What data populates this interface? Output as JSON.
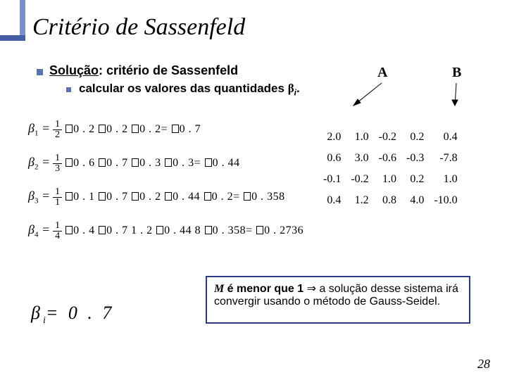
{
  "title": "Critério de Sassenfeld",
  "main_line_under": "Solução",
  "main_line_rest": ": critério de Sassenfeld",
  "sub_line_text": "calcular os valores das quantidades ",
  "sub_line_beta": "β",
  "sub_line_sub": "i",
  "sub_line_dot": ".",
  "labelA": "A",
  "labelB": "B",
  "equations": [
    {
      "lhs_sub": "1",
      "den": "2",
      "rhs": "0 . 2 0 . 2 0 . 2= 0 . 7",
      "boxes": 3
    },
    {
      "lhs_sub": "2",
      "den": "3",
      "rhs": "0 . 6 0 . 7 0 . 3 0 . 3= 0 . 44",
      "boxes": 3
    },
    {
      "lhs_sub": "3",
      "den": "1",
      "rhs": "0 . 1 0 . 7 0 . 2 0 . 44 0 . 2= 0 . 358",
      "boxes": 3
    },
    {
      "lhs_sub": "4",
      "den": "4",
      "rhs": "0 . 4 0 . 7 1 . 2 0 . 44 8 0 . 358= 0 . 2736",
      "boxes": 3
    }
  ],
  "matrix": {
    "rows": [
      [
        "2.0",
        "1.0",
        "-0.2",
        "0.2",
        "0.4"
      ],
      [
        "0.6",
        "3.0",
        "-0.6",
        "-0.3",
        "-7.8"
      ],
      [
        "-0.1",
        "-0.2",
        "1.0",
        "0.2",
        "1.0"
      ],
      [
        "0.4",
        "1.2",
        "0.8",
        "4.0",
        "-10.0"
      ]
    ]
  },
  "conclusion_M": "M",
  "conclusion_1": " é menor que 1 ",
  "conclusion_arrow": "⇒",
  "conclusion_2": " a solução desse sistema irá convergir usando o método de Gauss-Seidel.",
  "beta_final_sym": "β",
  "beta_final_sub": "i",
  "beta_final_eq": "= 0 . 7",
  "page_num": "28"
}
